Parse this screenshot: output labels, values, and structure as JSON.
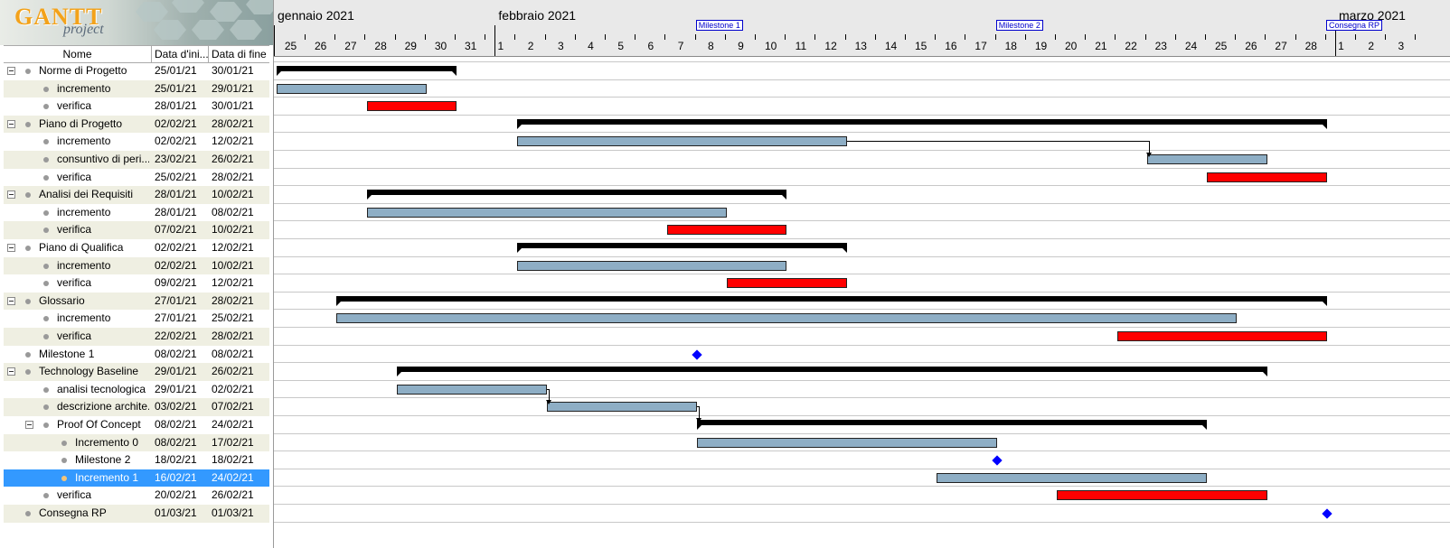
{
  "logo": {
    "brand": "GANTT",
    "sub": "project"
  },
  "table": {
    "headers": {
      "name": "Nome",
      "start": "Data d'ini...",
      "end": "Data di fine"
    },
    "rows": [
      {
        "name": "Norme di Progetto",
        "start": "25/01/21",
        "end": "30/01/21",
        "level": 0,
        "toggle": true
      },
      {
        "name": "incremento",
        "start": "25/01/21",
        "end": "29/01/21",
        "level": 1,
        "toggle": false
      },
      {
        "name": "verifica",
        "start": "28/01/21",
        "end": "30/01/21",
        "level": 1,
        "toggle": false
      },
      {
        "name": "Piano di Progetto",
        "start": "02/02/21",
        "end": "28/02/21",
        "level": 0,
        "toggle": true
      },
      {
        "name": "incremento",
        "start": "02/02/21",
        "end": "12/02/21",
        "level": 1,
        "toggle": false
      },
      {
        "name": "consuntivo di peri...",
        "start": "23/02/21",
        "end": "26/02/21",
        "level": 1,
        "toggle": false
      },
      {
        "name": "verifica",
        "start": "25/02/21",
        "end": "28/02/21",
        "level": 1,
        "toggle": false
      },
      {
        "name": "Analisi dei Requisiti",
        "start": "28/01/21",
        "end": "10/02/21",
        "level": 0,
        "toggle": true
      },
      {
        "name": "incremento",
        "start": "28/01/21",
        "end": "08/02/21",
        "level": 1,
        "toggle": false
      },
      {
        "name": "verifica",
        "start": "07/02/21",
        "end": "10/02/21",
        "level": 1,
        "toggle": false
      },
      {
        "name": "Piano di Qualifica",
        "start": "02/02/21",
        "end": "12/02/21",
        "level": 0,
        "toggle": true
      },
      {
        "name": "incremento",
        "start": "02/02/21",
        "end": "10/02/21",
        "level": 1,
        "toggle": false
      },
      {
        "name": "verifica",
        "start": "09/02/21",
        "end": "12/02/21",
        "level": 1,
        "toggle": false
      },
      {
        "name": "Glossario",
        "start": "27/01/21",
        "end": "28/02/21",
        "level": 0,
        "toggle": true
      },
      {
        "name": "incremento",
        "start": "27/01/21",
        "end": "25/02/21",
        "level": 1,
        "toggle": false
      },
      {
        "name": "verifica",
        "start": "22/02/21",
        "end": "28/02/21",
        "level": 1,
        "toggle": false
      },
      {
        "name": "Milestone 1",
        "start": "08/02/21",
        "end": "08/02/21",
        "level": 0,
        "toggle": false
      },
      {
        "name": "Technology Baseline",
        "start": "29/01/21",
        "end": "26/02/21",
        "level": 0,
        "toggle": true
      },
      {
        "name": "analisi tecnologica",
        "start": "29/01/21",
        "end": "02/02/21",
        "level": 1,
        "toggle": false
      },
      {
        "name": "descrizione archite...",
        "start": "03/02/21",
        "end": "07/02/21",
        "level": 1,
        "toggle": false
      },
      {
        "name": "Proof Of Concept",
        "start": "08/02/21",
        "end": "24/02/21",
        "level": 1,
        "toggle": true
      },
      {
        "name": "Incremento 0",
        "start": "08/02/21",
        "end": "17/02/21",
        "level": 2,
        "toggle": false
      },
      {
        "name": "Milestone 2",
        "start": "18/02/21",
        "end": "18/02/21",
        "level": 2,
        "toggle": false
      },
      {
        "name": "Incremento 1",
        "start": "16/02/21",
        "end": "24/02/21",
        "level": 2,
        "toggle": false,
        "selected": true
      },
      {
        "name": "verifica",
        "start": "20/02/21",
        "end": "26/02/21",
        "level": 1,
        "toggle": false
      },
      {
        "name": "Consegna RP",
        "start": "01/03/21",
        "end": "01/03/21",
        "level": 0,
        "toggle": false
      }
    ]
  },
  "timeline": {
    "months": [
      {
        "label": "gennaio 2021",
        "day_index": 0
      },
      {
        "label": "febbraio 2021",
        "day_index": 7
      },
      {
        "label": "marzo 2021",
        "day_index": 35
      }
    ],
    "days": [
      "25",
      "26",
      "27",
      "28",
      "29",
      "30",
      "31",
      "1",
      "2",
      "3",
      "4",
      "5",
      "6",
      "7",
      "8",
      "9",
      "10",
      "11",
      "12",
      "13",
      "14",
      "15",
      "16",
      "17",
      "18",
      "19",
      "20",
      "21",
      "22",
      "23",
      "24",
      "25",
      "26",
      "27",
      "28",
      "1",
      "2",
      "3"
    ],
    "milestone_labels": [
      {
        "label": "Milestone 1",
        "day_index": 14
      },
      {
        "label": "Milestone 2",
        "day_index": 24
      },
      {
        "label": "Consegna RP",
        "day_index": 35
      }
    ]
  },
  "bars": [
    {
      "row": 0,
      "type": "group",
      "start": 0,
      "end": 6
    },
    {
      "row": 1,
      "type": "blue",
      "start": 0,
      "end": 5
    },
    {
      "row": 2,
      "type": "red",
      "start": 3,
      "end": 6
    },
    {
      "row": 3,
      "type": "group",
      "start": 8,
      "end": 35
    },
    {
      "row": 4,
      "type": "blue",
      "start": 8,
      "end": 19
    },
    {
      "row": 5,
      "type": "blue",
      "start": 29,
      "end": 33
    },
    {
      "row": 6,
      "type": "red",
      "start": 31,
      "end": 35
    },
    {
      "row": 7,
      "type": "group",
      "start": 3,
      "end": 17
    },
    {
      "row": 8,
      "type": "blue",
      "start": 3,
      "end": 15
    },
    {
      "row": 9,
      "type": "red",
      "start": 13,
      "end": 17
    },
    {
      "row": 10,
      "type": "group",
      "start": 8,
      "end": 19
    },
    {
      "row": 11,
      "type": "blue",
      "start": 8,
      "end": 17
    },
    {
      "row": 12,
      "type": "red",
      "start": 15,
      "end": 19
    },
    {
      "row": 13,
      "type": "group",
      "start": 2,
      "end": 35
    },
    {
      "row": 14,
      "type": "blue",
      "start": 2,
      "end": 32
    },
    {
      "row": 15,
      "type": "red",
      "start": 28,
      "end": 35
    },
    {
      "row": 16,
      "type": "milestone",
      "start": 14
    },
    {
      "row": 17,
      "type": "group",
      "start": 4,
      "end": 33
    },
    {
      "row": 18,
      "type": "blue",
      "start": 4,
      "end": 9
    },
    {
      "row": 19,
      "type": "blue",
      "start": 9,
      "end": 14
    },
    {
      "row": 20,
      "type": "group",
      "start": 14,
      "end": 31
    },
    {
      "row": 21,
      "type": "blue",
      "start": 14,
      "end": 24
    },
    {
      "row": 22,
      "type": "milestone",
      "start": 24
    },
    {
      "row": 23,
      "type": "blue",
      "start": 22,
      "end": 31
    },
    {
      "row": 24,
      "type": "red",
      "start": 26,
      "end": 33
    },
    {
      "row": 25,
      "type": "milestone",
      "start": 35
    }
  ],
  "colors": {
    "task": "#8eaec5",
    "verify": "#ff0000",
    "milestone": "#0000ff",
    "selected": "#3399ff",
    "row_alt": "#efefe2"
  }
}
